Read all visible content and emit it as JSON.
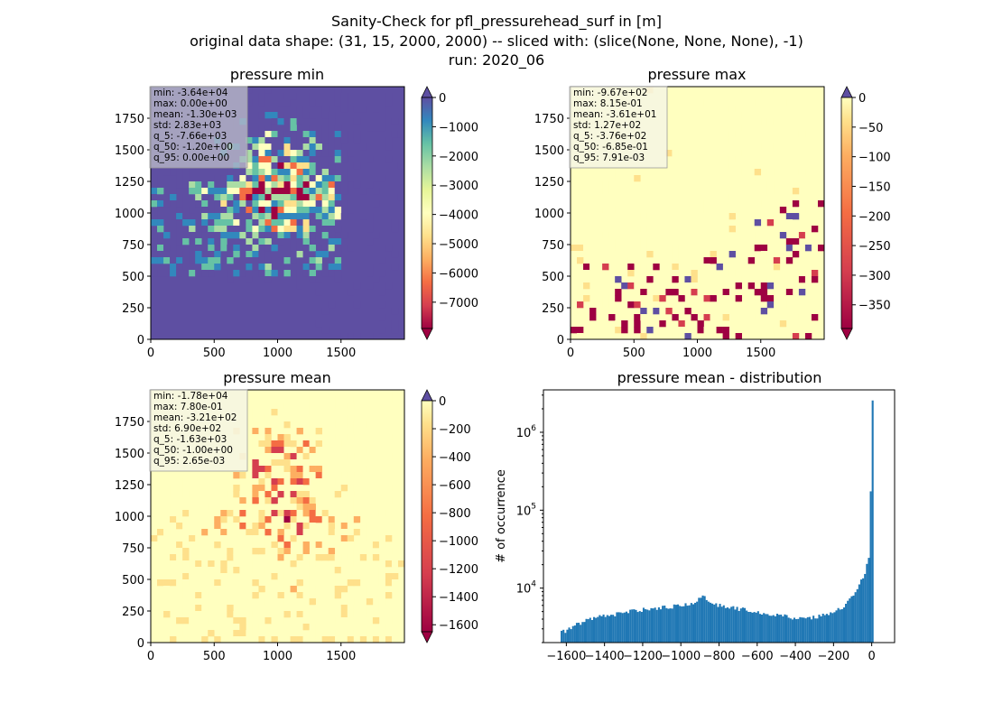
{
  "figure": {
    "title_lines": [
      "Sanity-Check for pfl_pressurehead_surf in [m]",
      "original data shape: (31, 15, 2000, 2000) -- sliced with: (slice(None, None, None), -1)",
      "run: 2020_06"
    ]
  },
  "chart_data": [
    {
      "type": "heatmap",
      "title": "pressure min",
      "xlim": [
        0,
        2000
      ],
      "ylim": [
        0,
        2000
      ],
      "xticks": [
        0,
        500,
        1000,
        1500
      ],
      "yticks": [
        0,
        250,
        500,
        750,
        1000,
        1250,
        1500,
        1750
      ],
      "colorbar": {
        "colormap": "Spectral",
        "range": [
          -7900,
          0
        ],
        "ticks": [
          0,
          -1000,
          -2000,
          -3000,
          -4000,
          -5000,
          -6000,
          -7000
        ]
      },
      "stats": [
        "min: -3.64e+04",
        "max: 0.00e+00",
        "mean: -1.30e+03",
        "std: 2.83e+03",
        "q_5: -7.66e+03",
        "q_50: -1.20e+00",
        "q_95: 0.00e+00"
      ]
    },
    {
      "type": "heatmap",
      "title": "pressure max",
      "xlim": [
        0,
        2000
      ],
      "ylim": [
        0,
        2000
      ],
      "xticks": [
        0,
        500,
        1000,
        1500
      ],
      "yticks": [
        0,
        250,
        500,
        750,
        1000,
        1250,
        1500,
        1750
      ],
      "colorbar": {
        "colormap": "Spectral",
        "range": [
          -390,
          0
        ],
        "ticks": [
          0,
          -50,
          -100,
          -150,
          -200,
          -250,
          -300,
          -350
        ]
      },
      "stats": [
        "min: -9.67e+02",
        "max: 8.15e-01",
        "mean: -3.61e+01",
        "std: 1.27e+02",
        "q_5: -3.76e+02",
        "q_50: -6.85e-01",
        "q_95: 7.91e-03"
      ]
    },
    {
      "type": "heatmap",
      "title": "pressure mean",
      "xlim": [
        0,
        2000
      ],
      "ylim": [
        0,
        2000
      ],
      "xticks": [
        0,
        500,
        1000,
        1500
      ],
      "yticks": [
        0,
        250,
        500,
        750,
        1000,
        1250,
        1500,
        1750
      ],
      "colorbar": {
        "colormap": "Spectral",
        "range": [
          -1650,
          0
        ],
        "ticks": [
          0,
          -200,
          -400,
          -600,
          -800,
          -1000,
          -1200,
          -1400,
          -1600
        ]
      },
      "stats": [
        "min: -1.78e+04",
        "max: 7.80e-01",
        "mean: -3.21e+02",
        "std: 6.90e+02",
        "q_5: -1.63e+03",
        "q_50: -1.00e+00",
        "q_95: 2.65e-03"
      ]
    },
    {
      "type": "bar",
      "title": "pressure mean - distribution",
      "ylabel": "# of occurrence",
      "xlabel": "",
      "yscale": "log",
      "xlim": [
        -1720,
        120
      ],
      "ylim": [
        2000,
        3500000
      ],
      "xticks": [
        -1600,
        -1400,
        -1200,
        -1000,
        -800,
        -600,
        -400,
        -200,
        0
      ],
      "yticks_labels": [
        "10^4",
        "10^5",
        "10^6"
      ],
      "bin_width": 10,
      "bins_x": [
        -1630,
        -1600,
        -1550,
        -1500,
        -1450,
        -1400,
        -1350,
        -1300,
        -1250,
        -1200,
        -1150,
        -1100,
        -1050,
        -1000,
        -960,
        -930,
        -910,
        -890,
        -870,
        -850,
        -800,
        -750,
        -700,
        -650,
        -600,
        -550,
        -500,
        -450,
        -400,
        -350,
        -300,
        -250,
        -200,
        -160,
        -120,
        -80,
        -60,
        -40,
        -30,
        -20,
        -15,
        -10,
        -5,
        0
      ],
      "bins_y": [
        2700,
        2900,
        3400,
        3800,
        4200,
        4400,
        4600,
        4900,
        5100,
        5300,
        5500,
        5700,
        5800,
        6000,
        6300,
        6600,
        7100,
        7800,
        7200,
        6500,
        6000,
        5700,
        5400,
        5200,
        4900,
        4700,
        4500,
        4300,
        4100,
        4100,
        4200,
        4600,
        5000,
        5600,
        7000,
        9500,
        12500,
        16000,
        20000,
        25000,
        50000,
        180000,
        2500000,
        2500000
      ]
    }
  ]
}
